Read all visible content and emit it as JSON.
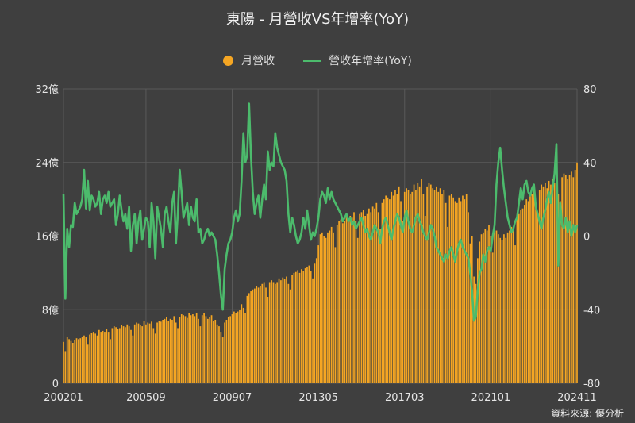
{
  "title": "東陽 - 月營收VS年增率(YoY)",
  "source": "資料來源: 優分析",
  "colors": {
    "background": "#3f3f3f",
    "bar": "#f5a623",
    "line": "#4cbb6c",
    "grid": "#5a5a5a"
  },
  "chart_data": {
    "type": "bar+line",
    "x_ticks": [
      "200201",
      "200509",
      "200907",
      "201305",
      "201703",
      "202101",
      "202411"
    ],
    "x_range": [
      "2002-01",
      "2024-11"
    ],
    "left_axis": {
      "ticks": [
        "0",
        "8億",
        "16億",
        "24億",
        "32億"
      ],
      "unit": "億",
      "ylim": [
        0,
        32
      ]
    },
    "right_axis": {
      "ticks": [
        "-80",
        "-40",
        "0",
        "40",
        "80"
      ],
      "ylim": [
        -80,
        80
      ]
    },
    "grid": true,
    "legend_placement": "top-center",
    "series": [
      {
        "name": "月營收",
        "kind": "bar",
        "axis": "left",
        "yearly_values": [
          {
            "year": 2002,
            "values": [
              4.5,
              3.5,
              5.0,
              4.8,
              4.6,
              4.4,
              4.7,
              4.9,
              4.8,
              4.9,
              5.0,
              5.2
            ]
          },
          {
            "year": 2003,
            "values": [
              5.0,
              4.2,
              5.3,
              5.5,
              5.6,
              5.4,
              5.2,
              5.8,
              5.6,
              5.7,
              5.6,
              5.9
            ]
          },
          {
            "year": 2004,
            "values": [
              5.6,
              4.8,
              6.0,
              6.2,
              6.1,
              5.9,
              6.0,
              6.3,
              6.2,
              6.1,
              6.4,
              6.2
            ]
          },
          {
            "year": 2005,
            "values": [
              5.8,
              5.2,
              6.4,
              6.6,
              6.5,
              6.3,
              6.2,
              6.8,
              6.4,
              6.6,
              6.5,
              6.7
            ]
          },
          {
            "year": 2006,
            "values": [
              6.0,
              5.4,
              6.6,
              6.8,
              6.7,
              6.9,
              7.0,
              7.2,
              6.8,
              7.0,
              6.9,
              7.3
            ]
          },
          {
            "year": 2007,
            "values": [
              6.6,
              6.0,
              7.2,
              7.5,
              7.4,
              7.3,
              7.1,
              7.6,
              7.4,
              7.5,
              7.3,
              7.6
            ]
          },
          {
            "year": 2008,
            "values": [
              7.0,
              6.2,
              7.4,
              7.6,
              7.3,
              7.0,
              7.2,
              7.4,
              6.8,
              6.9,
              6.4,
              6.2
            ]
          },
          {
            "year": 2009,
            "values": [
              5.6,
              5.0,
              6.6,
              6.9,
              7.2,
              7.3,
              7.5,
              7.8,
              7.6,
              7.8,
              8.0,
              8.6
            ]
          },
          {
            "year": 2010,
            "values": [
              8.2,
              7.6,
              9.5,
              9.8,
              10.0,
              10.2,
              10.3,
              10.6,
              10.4,
              10.6,
              10.8,
              11.0
            ]
          },
          {
            "year": 2011,
            "values": [
              10.4,
              9.4,
              11.0,
              11.2,
              11.0,
              10.8,
              11.0,
              11.4,
              11.2,
              11.5,
              11.3,
              11.6
            ]
          },
          {
            "year": 2012,
            "values": [
              10.8,
              10.2,
              11.8,
              12.0,
              12.1,
              12.3,
              12.0,
              12.4,
              12.2,
              12.5,
              12.6,
              12.8
            ]
          },
          {
            "year": 2013,
            "values": [
              12.2,
              11.4,
              13.0,
              13.6,
              15.0,
              16.2,
              16.4,
              16.0,
              15.8,
              16.4,
              16.6,
              17.0
            ]
          },
          {
            "year": 2014,
            "values": [
              16.4,
              14.8,
              17.2,
              17.6,
              17.8,
              17.4,
              17.6,
              18.0,
              17.6,
              18.2,
              18.0,
              18.6
            ]
          },
          {
            "year": 2015,
            "values": [
              17.6,
              15.8,
              18.4,
              18.6,
              18.8,
              18.2,
              18.4,
              19.0,
              18.6,
              19.2,
              19.0,
              19.6
            ]
          },
          {
            "year": 2016,
            "values": [
              18.6,
              16.8,
              19.6,
              20.0,
              20.4,
              20.2,
              20.0,
              20.8,
              20.4,
              21.0,
              20.6,
              21.4
            ]
          },
          {
            "year": 2017,
            "values": [
              19.8,
              17.6,
              20.8,
              21.2,
              21.0,
              20.6,
              20.8,
              21.6,
              21.0,
              21.8,
              21.4,
              22.2
            ]
          },
          {
            "year": 2018,
            "values": [
              20.6,
              18.2,
              21.4,
              21.8,
              21.6,
              21.2,
              21.0,
              21.4,
              20.8,
              21.2,
              20.6,
              21.0
            ]
          },
          {
            "year": 2019,
            "values": [
              19.6,
              17.0,
              20.4,
              20.6,
              20.2,
              19.8,
              19.6,
              20.2,
              19.8,
              20.4,
              20.0,
              20.6
            ]
          },
          {
            "year": 2020,
            "values": [
              18.6,
              15.2,
              16.0,
              11.6,
              10.8,
              13.6,
              15.4,
              16.2,
              16.4,
              16.8,
              16.6,
              17.2
            ]
          },
          {
            "year": 2021,
            "values": [
              16.0,
              14.2,
              16.8,
              16.6,
              16.2,
              15.8,
              15.6,
              16.2,
              15.8,
              16.4,
              16.6,
              17.0
            ]
          },
          {
            "year": 2022,
            "values": [
              16.8,
              15.0,
              18.0,
              18.4,
              18.8,
              19.0,
              19.4,
              20.0,
              19.8,
              20.4,
              20.6,
              21.2
            ]
          },
          {
            "year": 2023,
            "values": [
              19.6,
              18.4,
              21.0,
              21.6,
              21.4,
              21.8,
              21.2,
              22.0,
              21.6,
              22.2,
              21.8,
              22.4
            ]
          },
          {
            "year": 2024,
            "values": [
              20.6,
              19.8,
              22.4,
              22.8,
              22.6,
              22.2,
              22.6,
              23.0,
              22.4,
              23.2,
              24.0
            ]
          }
        ]
      },
      {
        "name": "營收年增率(YoY)",
        "kind": "line",
        "axis": "right",
        "yearly_values": [
          {
            "year": 2002,
            "values": [
              23,
              -34,
              4,
              -6,
              6,
              5,
              18,
              12,
              14,
              16,
              20,
              36
            ]
          },
          {
            "year": 2003,
            "values": [
              15,
              30,
              14,
              22,
              20,
              16,
              18,
              24,
              12,
              20,
              22,
              18
            ]
          },
          {
            "year": 2004,
            "values": [
              24,
              16,
              18,
              20,
              6,
              12,
              22,
              14,
              8,
              12,
              4,
              16
            ]
          },
          {
            "year": 2005,
            "values": [
              -8,
              6,
              12,
              -4,
              8,
              14,
              -2,
              4,
              10,
              8,
              -6,
              18
            ]
          },
          {
            "year": 2006,
            "values": [
              8,
              -12,
              16,
              10,
              4,
              -6,
              12,
              16,
              8,
              2,
              18,
              24
            ]
          },
          {
            "year": 2007,
            "values": [
              -4,
              12,
              36,
              24,
              10,
              14,
              18,
              6,
              16,
              10,
              8,
              20
            ]
          },
          {
            "year": 2008,
            "values": [
              2,
              4,
              -4,
              -2,
              2,
              4,
              0,
              2,
              0,
              -2,
              -10,
              -20
            ]
          },
          {
            "year": 2009,
            "values": [
              -32,
              -40,
              -18,
              -10,
              -4,
              -2,
              2,
              10,
              14,
              8,
              12,
              30
            ]
          },
          {
            "year": 2010,
            "values": [
              56,
              40,
              44,
              72,
              44,
              24,
              12,
              18,
              22,
              10,
              20,
              28
            ]
          },
          {
            "year": 2011,
            "values": [
              20,
              46,
              36,
              40,
              38,
              56,
              48,
              44,
              40,
              38,
              36,
              30
            ]
          },
          {
            "year": 2012,
            "values": [
              12,
              2,
              10,
              6,
              0,
              -4,
              -2,
              2,
              10,
              4,
              14,
              6
            ]
          },
          {
            "year": 2013,
            "values": [
              -2,
              2,
              0,
              4,
              10,
              20,
              24,
              22,
              18,
              26,
              20,
              24
            ]
          },
          {
            "year": 2014,
            "values": [
              20,
              18,
              16,
              14,
              12,
              8,
              10,
              12,
              8,
              10,
              6,
              8
            ]
          },
          {
            "year": 2015,
            "values": [
              4,
              6,
              8,
              10,
              6,
              2,
              4,
              0,
              -2,
              2,
              6,
              4
            ]
          },
          {
            "year": 2016,
            "values": [
              2,
              -4,
              4,
              8,
              10,
              6,
              2,
              -2,
              4,
              8,
              12,
              10
            ]
          },
          {
            "year": 2017,
            "values": [
              6,
              2,
              10,
              14,
              8,
              4,
              2,
              6,
              10,
              12,
              8,
              6
            ]
          },
          {
            "year": 2018,
            "values": [
              2,
              0,
              -2,
              2,
              6,
              4,
              0,
              -6,
              -8,
              -10,
              -12,
              -14
            ]
          },
          {
            "year": 2019,
            "values": [
              -10,
              -12,
              -8,
              -6,
              -10,
              -14,
              -8,
              -4,
              -2,
              -6,
              -8,
              -10
            ]
          },
          {
            "year": 2020,
            "values": [
              -12,
              -20,
              -30,
              -46,
              -44,
              -30,
              -20,
              -18,
              -10,
              -14,
              -8,
              -6
            ]
          },
          {
            "year": 2021,
            "values": [
              -8,
              0,
              6,
              28,
              40,
              48,
              36,
              26,
              18,
              10,
              6,
              2
            ]
          },
          {
            "year": 2022,
            "values": [
              4,
              8,
              10,
              18,
              26,
              20,
              28,
              30,
              24,
              22,
              26,
              28
            ]
          },
          {
            "year": 2023,
            "values": [
              16,
              12,
              8,
              4,
              10,
              14,
              20,
              24,
              18,
              26,
              34,
              50
            ]
          },
          {
            "year": 2024,
            "values": [
              -16,
              18,
              6,
              4,
              10,
              2,
              8,
              0,
              6,
              2,
              6
            ]
          }
        ]
      }
    ]
  }
}
